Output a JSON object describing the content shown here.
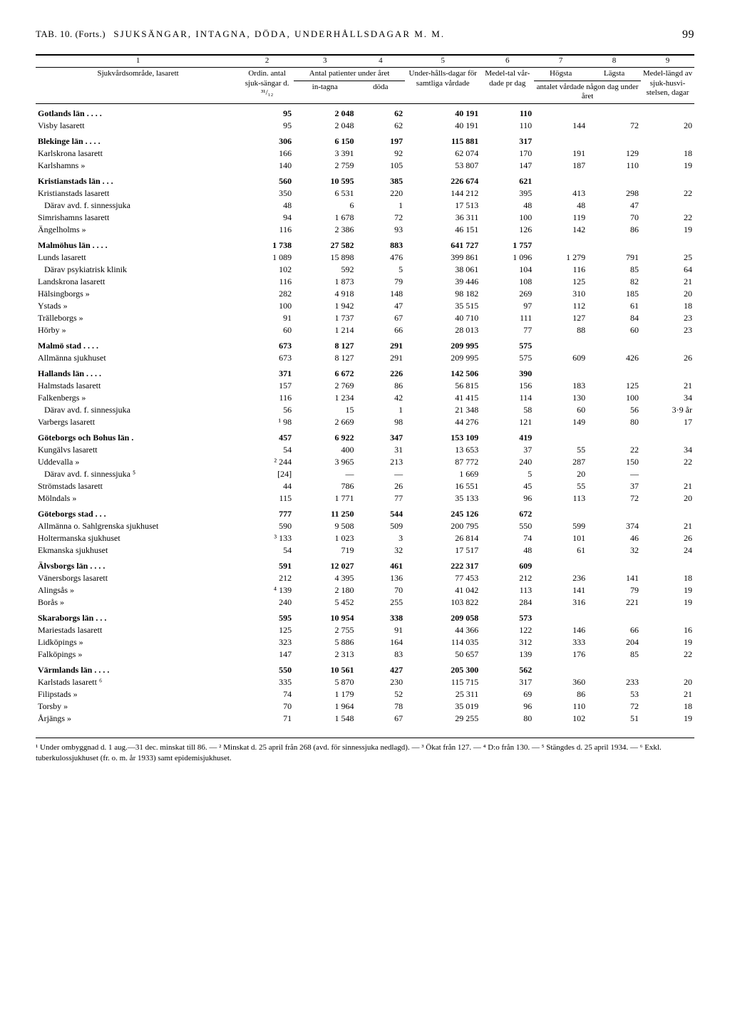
{
  "page": {
    "tab_label": "TAB. 10.  (Forts.)",
    "title": "SJUKSÄNGAR, INTAGNA, DÖDA, UNDERHÅLLSDAGAR M. M.",
    "page_number": "99"
  },
  "columns": {
    "nums": [
      "1",
      "2",
      "3",
      "4",
      "5",
      "6",
      "7",
      "8",
      "9"
    ],
    "h1": "Sjukvårdsområde, lasarett",
    "h2a": "Ordin. antal sjuk-sängar d. ³¹/₁₂",
    "h34_top": "Antal patienter under året",
    "h3": "in-tagna",
    "h4": "döda",
    "h5_top": "Under-hålls-dagar för samtliga vårdade",
    "h6": "Medel-tal vår-dade pr dag",
    "h78_top": "antalet vårdade någon dag under året",
    "h7": "Högsta",
    "h8": "Lägsta",
    "h9": "Medel-längd av sjuk-husvi-stelsen, dagar"
  },
  "rows": [
    {
      "section": true,
      "name": "Gotlands län . . . .",
      "c": [
        "95",
        "2 048",
        "62",
        "40 191",
        "110",
        "",
        "",
        ""
      ]
    },
    {
      "name": "Visby lasarett",
      "dots": true,
      "c": [
        "95",
        "2 048",
        "62",
        "40 191",
        "110",
        "144",
        "72",
        "20"
      ]
    },
    {
      "section": true,
      "name": "Blekinge län . . . .",
      "c": [
        "306",
        "6 150",
        "197",
        "115 881",
        "317",
        "",
        "",
        ""
      ]
    },
    {
      "name": "Karlskrona lasarett",
      "dots": true,
      "c": [
        "166",
        "3 391",
        "92",
        "62 074",
        "170",
        "191",
        "129",
        "18"
      ]
    },
    {
      "name": "Karlshamns      »",
      "dots": true,
      "c": [
        "140",
        "2 759",
        "105",
        "53 807",
        "147",
        "187",
        "110",
        "19"
      ]
    },
    {
      "section": true,
      "name": "Kristianstads län . . .",
      "c": [
        "560",
        "10 595",
        "385",
        "226 674",
        "621",
        "",
        "",
        ""
      ]
    },
    {
      "name": "Kristianstads lasarett",
      "dots": true,
      "c": [
        "350",
        "6 531",
        "220",
        "144 212",
        "395",
        "413",
        "298",
        "22"
      ]
    },
    {
      "name": "Därav avd. f. sinnessjuka",
      "indent": true,
      "dots": true,
      "c": [
        "48",
        "6",
        "1",
        "17 513",
        "48",
        "48",
        "47",
        ""
      ]
    },
    {
      "name": "Simrishamns lasarett",
      "dots": true,
      "c": [
        "94",
        "1 678",
        "72",
        "36 311",
        "100",
        "119",
        "70",
        "22"
      ]
    },
    {
      "name": "Ängelholms      »",
      "dots": true,
      "c": [
        "116",
        "2 386",
        "93",
        "46 151",
        "126",
        "142",
        "86",
        "19"
      ]
    },
    {
      "section": true,
      "name": "Malmöhus län . . . .",
      "c": [
        "1 738",
        "27 582",
        "883",
        "641 727",
        "1 757",
        "",
        "",
        ""
      ]
    },
    {
      "name": "Lunds      lasarett",
      "dots": true,
      "c": [
        "1 089",
        "15 898",
        "476",
        "399 861",
        "1 096",
        "1 279",
        "791",
        "25"
      ]
    },
    {
      "name": "Därav psykiatrisk klinik",
      "indent": true,
      "dots": true,
      "c": [
        "102",
        "592",
        "5",
        "38 061",
        "104",
        "116",
        "85",
        "64"
      ]
    },
    {
      "name": "Landskrona lasarett",
      "dots": true,
      "c": [
        "116",
        "1 873",
        "79",
        "39 446",
        "108",
        "125",
        "82",
        "21"
      ]
    },
    {
      "name": "Hälsingborgs  »",
      "dots": true,
      "c": [
        "282",
        "4 918",
        "148",
        "98 182",
        "269",
        "310",
        "185",
        "20"
      ]
    },
    {
      "name": "Ystads        »",
      "dots": true,
      "c": [
        "100",
        "1 942",
        "47",
        "35 515",
        "97",
        "112",
        "61",
        "18"
      ]
    },
    {
      "name": "Trälleborgs   »",
      "dots": true,
      "c": [
        "91",
        "1 737",
        "67",
        "40 710",
        "111",
        "127",
        "84",
        "23"
      ]
    },
    {
      "name": "Hörby         »",
      "dots": true,
      "c": [
        "60",
        "1 214",
        "66",
        "28 013",
        "77",
        "88",
        "60",
        "23"
      ]
    },
    {
      "section": true,
      "name": "Malmö stad . . . .",
      "c": [
        "673",
        "8 127",
        "291",
        "209 995",
        "575",
        "",
        "",
        ""
      ]
    },
    {
      "name": "Allmänna sjukhuset",
      "dots": true,
      "c": [
        "673",
        "8 127",
        "291",
        "209 995",
        "575",
        "609",
        "426",
        "26"
      ]
    },
    {
      "section": true,
      "name": "Hallands län . . . .",
      "c": [
        "371",
        "6 672",
        "226",
        "142 506",
        "390",
        "",
        "",
        ""
      ]
    },
    {
      "name": "Halmstads lasarett",
      "dots": true,
      "c": [
        "157",
        "2 769",
        "86",
        "56 815",
        "156",
        "183",
        "125",
        "21"
      ]
    },
    {
      "name": "Falkenbergs   »",
      "dots": true,
      "c": [
        "116",
        "1 234",
        "42",
        "41 415",
        "114",
        "130",
        "100",
        "34"
      ]
    },
    {
      "name": "Därav avd. f. sinnessjuka",
      "indent": true,
      "dots": true,
      "c": [
        "56",
        "15",
        "1",
        "21 348",
        "58",
        "60",
        "56",
        "3·9 år"
      ]
    },
    {
      "name": "Varbergs lasarett",
      "dots": true,
      "c": [
        "¹ 98",
        "2 669",
        "98",
        "44 276",
        "121",
        "149",
        "80",
        "17"
      ]
    },
    {
      "section": true,
      "name": "Göteborgs och Bohus län .",
      "c": [
        "457",
        "6 922",
        "347",
        "153 109",
        "419",
        "",
        "",
        ""
      ]
    },
    {
      "name": "Kungälvs lasarett",
      "dots": true,
      "c": [
        "54",
        "400",
        "31",
        "13 653",
        "37",
        "55",
        "22",
        "34"
      ]
    },
    {
      "name": "Uddevalla     »",
      "dots": true,
      "c": [
        "² 244",
        "3 965",
        "213",
        "87 772",
        "240",
        "287",
        "150",
        "22"
      ]
    },
    {
      "name": "Därav avd. f. sinnessjuka ⁵",
      "indent": true,
      "dots": true,
      "c": [
        "[24]",
        "—",
        "—",
        "1 669",
        "5",
        "20",
        "—",
        ""
      ]
    },
    {
      "name": "Strömstads lasarett",
      "dots": true,
      "c": [
        "44",
        "786",
        "26",
        "16 551",
        "45",
        "55",
        "37",
        "21"
      ]
    },
    {
      "name": "Mölndals      »",
      "dots": true,
      "c": [
        "115",
        "1 771",
        "77",
        "35 133",
        "96",
        "113",
        "72",
        "20"
      ]
    },
    {
      "section": true,
      "name": "Göteborgs stad . . .",
      "c": [
        "777",
        "11 250",
        "544",
        "245 126",
        "672",
        "",
        "",
        ""
      ]
    },
    {
      "name": "Allmänna o. Sahlgrenska sjukhuset",
      "c": [
        "590",
        "9 508",
        "509",
        "200 795",
        "550",
        "599",
        "374",
        "21"
      ]
    },
    {
      "name": "Holtermanska sjukhuset",
      "dots": true,
      "c": [
        "³ 133",
        "1 023",
        "3",
        "26 814",
        "74",
        "101",
        "46",
        "26"
      ]
    },
    {
      "name": "Ekmanska sjukhuset",
      "dots": true,
      "c": [
        "54",
        "719",
        "32",
        "17 517",
        "48",
        "61",
        "32",
        "24"
      ]
    },
    {
      "section": true,
      "name": "Älvsborgs län . . . .",
      "c": [
        "591",
        "12 027",
        "461",
        "222 317",
        "609",
        "",
        "",
        ""
      ]
    },
    {
      "name": "Vänersborgs lasarett",
      "dots": true,
      "c": [
        "212",
        "4 395",
        "136",
        "77 453",
        "212",
        "236",
        "141",
        "18"
      ]
    },
    {
      "name": "Alingsås      »",
      "dots": true,
      "c": [
        "⁴ 139",
        "2 180",
        "70",
        "41 042",
        "113",
        "141",
        "79",
        "19"
      ]
    },
    {
      "name": "Borås         »",
      "dots": true,
      "c": [
        "240",
        "5 452",
        "255",
        "103 822",
        "284",
        "316",
        "221",
        "19"
      ]
    },
    {
      "section": true,
      "name": "Skaraborgs län . . .",
      "c": [
        "595",
        "10 954",
        "338",
        "209 058",
        "573",
        "",
        "",
        ""
      ]
    },
    {
      "name": "Mariestads lasarett",
      "dots": true,
      "c": [
        "125",
        "2 755",
        "91",
        "44 366",
        "122",
        "146",
        "66",
        "16"
      ]
    },
    {
      "name": "Lidköpings    »",
      "dots": true,
      "c": [
        "323",
        "5 886",
        "164",
        "114 035",
        "312",
        "333",
        "204",
        "19"
      ]
    },
    {
      "name": "Falköpings    »",
      "dots": true,
      "c": [
        "147",
        "2 313",
        "83",
        "50 657",
        "139",
        "176",
        "85",
        "22"
      ]
    },
    {
      "section": true,
      "name": "Värmlands län . . . .",
      "c": [
        "550",
        "10 561",
        "427",
        "205 300",
        "562",
        "",
        "",
        ""
      ]
    },
    {
      "name": "Karlstads lasarett ⁶",
      "dots": true,
      "c": [
        "335",
        "5 870",
        "230",
        "115 715",
        "317",
        "360",
        "233",
        "20"
      ]
    },
    {
      "name": "Filipstads    »",
      "dots": true,
      "c": [
        "74",
        "1 179",
        "52",
        "25 311",
        "69",
        "86",
        "53",
        "21"
      ]
    },
    {
      "name": "Torsby        »",
      "dots": true,
      "c": [
        "70",
        "1 964",
        "78",
        "35 019",
        "96",
        "110",
        "72",
        "18"
      ]
    },
    {
      "name": "Årjängs       »",
      "dots": true,
      "c": [
        "71",
        "1 548",
        "67",
        "29 255",
        "80",
        "102",
        "51",
        "19"
      ]
    }
  ],
  "footnotes": "¹ Under ombyggnad d. 1 aug.—31 dec. minskat till 86. — ² Minskat d. 25 april från 268 (avd. för sinnessjuka nedlagd). — ³ Ökat från 127. — ⁴ D:o från 130. — ⁵ Stängdes d. 25 april 1934. — ⁶ Exkl. tuberkulossjukhuset (fr. o. m. år 1933) samt epidemisjukhuset."
}
